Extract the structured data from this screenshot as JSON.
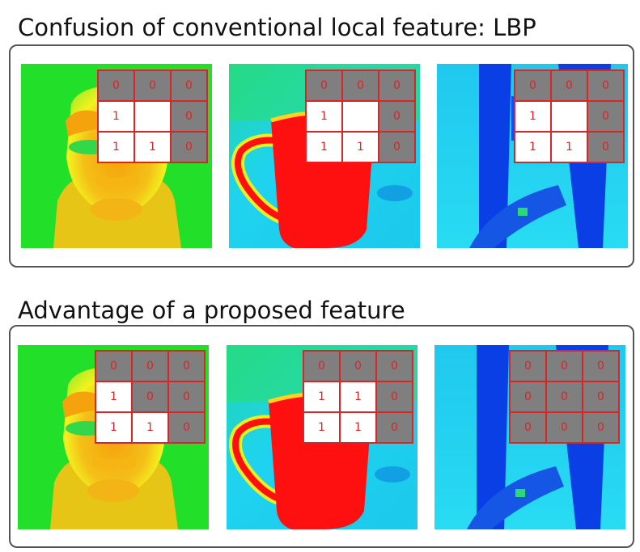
{
  "sections": [
    {
      "title": "Confusion of conventional local feature: LBP",
      "panels": [
        {
          "scene": "face",
          "grid": [
            "0",
            "0",
            "0",
            "1",
            "",
            "0",
            "1",
            "1",
            "0"
          ]
        },
        {
          "scene": "mug",
          "grid": [
            "0",
            "0",
            "0",
            "1",
            "",
            "0",
            "1",
            "1",
            "0"
          ]
        },
        {
          "scene": "chair",
          "grid": [
            "0",
            "0",
            "0",
            "1",
            "",
            "0",
            "1",
            "1",
            "0"
          ]
        }
      ]
    },
    {
      "title": "Advantage of a proposed feature",
      "panels": [
        {
          "scene": "face",
          "grid": [
            "0",
            "0",
            "0",
            "1",
            "0",
            "0",
            "1",
            "1",
            "0"
          ]
        },
        {
          "scene": "mug",
          "grid": [
            "0",
            "0",
            "0",
            "1",
            "1",
            "0",
            "1",
            "1",
            "0"
          ]
        },
        {
          "scene": "chair",
          "grid": [
            "0",
            "0",
            "0",
            "0",
            "0",
            "0",
            "0",
            "0",
            "0"
          ]
        }
      ]
    }
  ],
  "colors": {
    "grid_line": "#d92525",
    "cell_zero": "#7f7f7f",
    "cell_one": "#ffffff",
    "thermal_green": "#22e02a",
    "thermal_yellow": "#f2f21e",
    "thermal_orange": "#f5a20c",
    "thermal_red": "#ff1010",
    "thermal_cyan": "#1fd3f0",
    "thermal_blue": "#0a3fe6"
  }
}
